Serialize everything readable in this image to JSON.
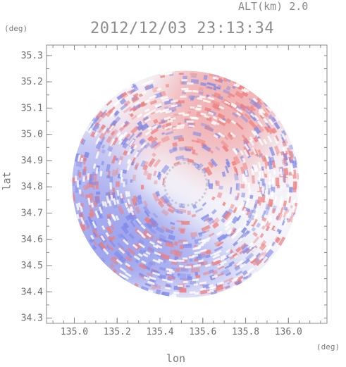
{
  "header": {
    "altitude": "ALT(km) 2.0",
    "timestamp": "2012/12/03 23:13:34"
  },
  "chart_data": {
    "type": "heatmap",
    "title": "2012/12/03 23:13:34",
    "xlabel": "lon",
    "ylabel": "lat",
    "x_unit": "(deg)",
    "y_unit": "(deg)",
    "xlim": [
      134.87,
      136.18
    ],
    "ylim": [
      34.28,
      35.34
    ],
    "x_ticks": [
      "135.0",
      "135.2",
      "135.4",
      "135.6",
      "135.8",
      "136.0"
    ],
    "y_ticks": [
      "34.3",
      "34.4",
      "34.5",
      "34.6",
      "34.7",
      "34.8",
      "34.9",
      "35.0",
      "35.1",
      "35.2",
      "35.3"
    ],
    "radar_center": {
      "lon": 135.52,
      "lat": 34.81
    },
    "coverage_radius_deg": 0.53,
    "colors": {
      "positive": "#f09a9a",
      "negative": "#9aa0ee",
      "neutral": "#f4f4fa",
      "frame": "#888888"
    },
    "regions": [
      {
        "lon": 135.72,
        "lat": 35.16,
        "value": 0.55
      },
      {
        "lon": 135.1,
        "lat": 34.62,
        "value": -0.75
      },
      {
        "lon": 135.32,
        "lat": 34.55,
        "value": -0.55
      },
      {
        "lon": 135.02,
        "lat": 34.88,
        "value": -0.4
      },
      {
        "lon": 135.7,
        "lat": 34.95,
        "value": 0.25
      },
      {
        "lon": 135.6,
        "lat": 34.5,
        "value": -0.2
      },
      {
        "lon": 135.4,
        "lat": 35.02,
        "value": 0.1
      }
    ]
  }
}
